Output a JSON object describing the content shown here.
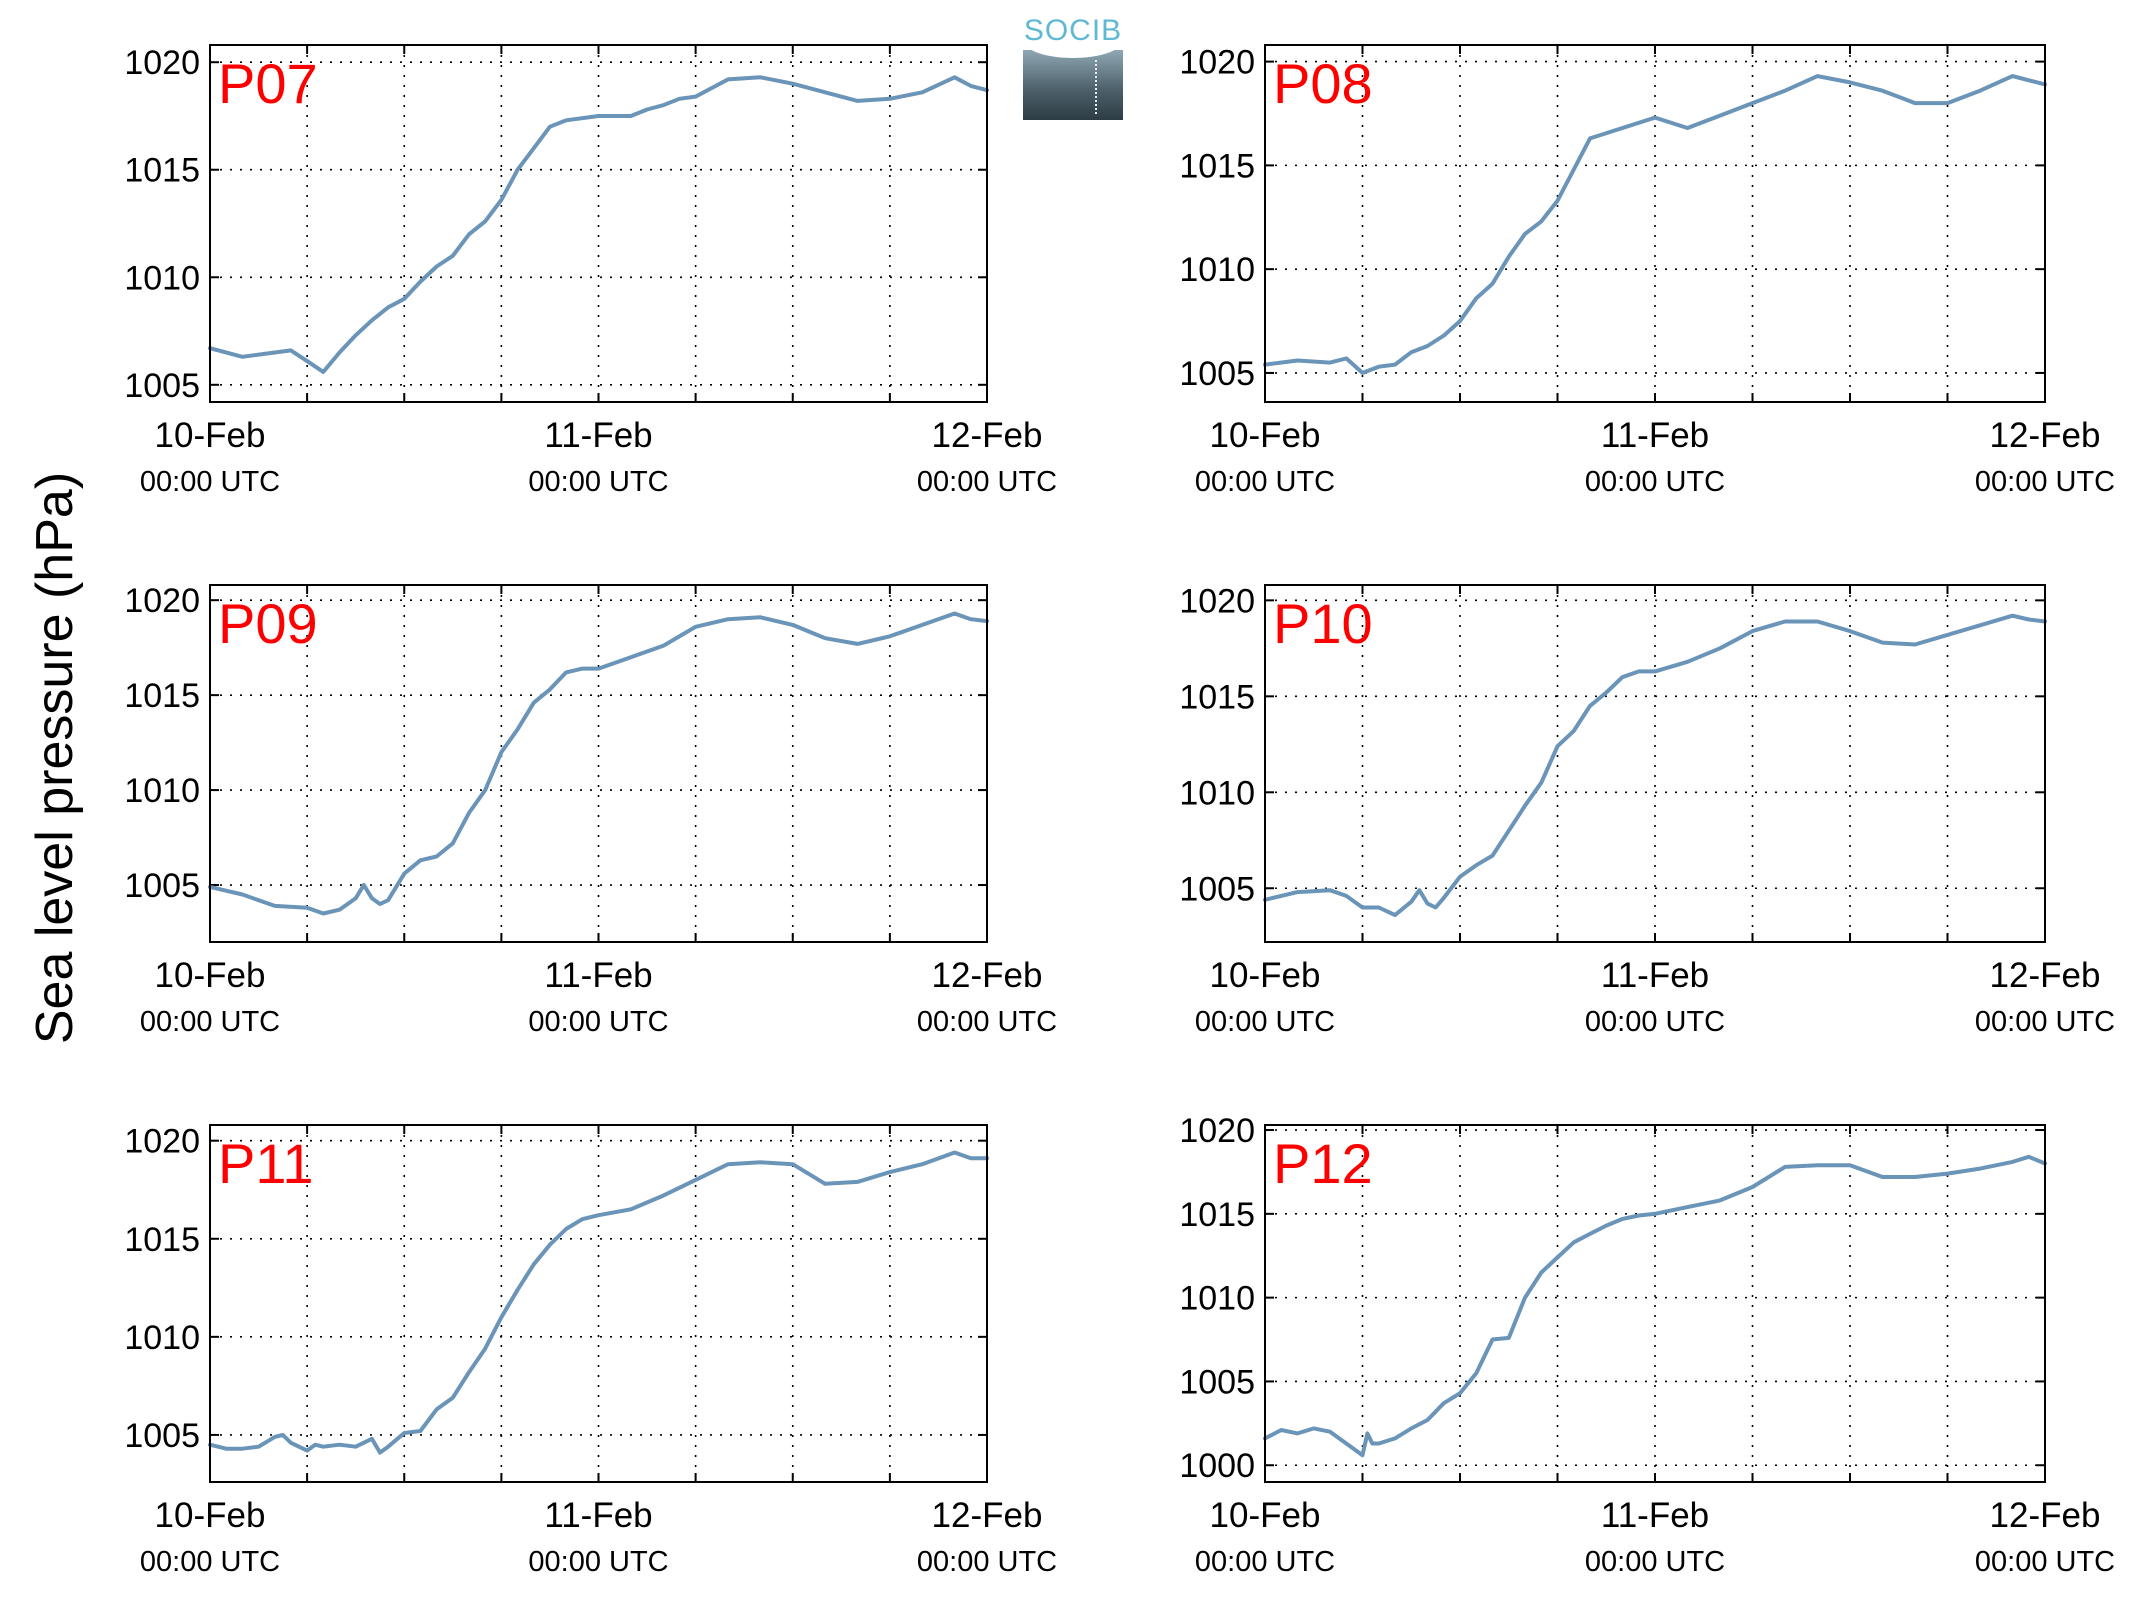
{
  "figure": {
    "ylabel": "Sea level pressure (hPa)",
    "logo_text": "SOCIB",
    "line_color": "#6a94b8",
    "label_color": "#ff0000"
  },
  "chart_data": [
    {
      "type": "line",
      "label": "P07",
      "x_ticks": [
        "10-Feb 00:00 UTC",
        "11-Feb 00:00 UTC",
        "12-Feb 00:00 UTC"
      ],
      "xlim": [
        0,
        48
      ],
      "ylim": [
        1004.2,
        1020.8
      ],
      "yticks": [
        1005,
        1010,
        1015,
        1020
      ],
      "grid": true,
      "x_hours": [
        0,
        2,
        4,
        5,
        6,
        7,
        8,
        9,
        10,
        11,
        12,
        13,
        14,
        15,
        16,
        17,
        18,
        19,
        20,
        21,
        22,
        24,
        26,
        27,
        28,
        29,
        30,
        32,
        34,
        36,
        38,
        40,
        42,
        44,
        46,
        47,
        48
      ],
      "values": [
        1006.7,
        1006.3,
        1006.5,
        1006.6,
        1006.1,
        1005.6,
        1006.5,
        1007.3,
        1008.0,
        1008.6,
        1009.0,
        1009.8,
        1010.5,
        1011.0,
        1012.0,
        1012.6,
        1013.6,
        1015.0,
        1016.0,
        1017.0,
        1017.3,
        1017.5,
        1017.5,
        1017.8,
        1018.0,
        1018.3,
        1018.4,
        1019.2,
        1019.3,
        1019.0,
        1018.6,
        1018.2,
        1018.3,
        1018.6,
        1019.3,
        1018.9,
        1018.7
      ]
    },
    {
      "type": "line",
      "label": "P08",
      "x_ticks": [
        "10-Feb 00:00 UTC",
        "11-Feb 00:00 UTC",
        "12-Feb 00:00 UTC"
      ],
      "xlim": [
        0,
        48
      ],
      "ylim": [
        1003.6,
        1020.8
      ],
      "yticks": [
        1005,
        1010,
        1015,
        1020
      ],
      "grid": true,
      "x_hours": [
        0,
        2,
        4,
        5,
        6,
        7,
        8,
        9,
        10,
        11,
        12,
        13,
        14,
        15,
        16,
        17,
        18,
        19,
        20,
        22,
        24,
        26,
        28,
        30,
        32,
        34,
        36,
        38,
        40,
        42,
        44,
        46,
        47,
        48
      ],
      "values": [
        1005.4,
        1005.6,
        1005.5,
        1005.7,
        1005.0,
        1005.3,
        1005.4,
        1006.0,
        1006.3,
        1006.8,
        1007.5,
        1008.6,
        1009.3,
        1010.6,
        1011.7,
        1012.3,
        1013.3,
        1014.8,
        1016.3,
        1016.8,
        1017.3,
        1016.8,
        1017.4,
        1018.0,
        1018.6,
        1019.3,
        1019.0,
        1018.6,
        1018.0,
        1018.0,
        1018.6,
        1019.3,
        1019.1,
        1018.9
      ]
    },
    {
      "type": "line",
      "label": "P09",
      "x_ticks": [
        "10-Feb 00:00 UTC",
        "11-Feb 00:00 UTC",
        "12-Feb 00:00 UTC"
      ],
      "xlim": [
        0,
        48
      ],
      "ylim": [
        1002.0,
        1020.8
      ],
      "yticks": [
        1005,
        1010,
        1015,
        1020
      ],
      "grid": true,
      "x_hours": [
        0,
        2,
        4,
        6,
        7,
        8,
        9,
        9.5,
        10,
        10.5,
        11,
        12,
        13,
        14,
        15,
        16,
        17,
        18,
        19,
        20,
        21,
        22,
        23,
        24,
        26,
        28,
        30,
        32,
        34,
        36,
        38,
        40,
        42,
        44,
        46,
        47,
        48
      ],
      "values": [
        1004.9,
        1004.5,
        1003.9,
        1003.8,
        1003.5,
        1003.7,
        1004.3,
        1005.0,
        1004.3,
        1004.0,
        1004.2,
        1005.6,
        1006.3,
        1006.5,
        1007.2,
        1008.8,
        1010.0,
        1012.0,
        1013.2,
        1014.6,
        1015.3,
        1016.2,
        1016.4,
        1016.4,
        1017.0,
        1017.6,
        1018.6,
        1019.0,
        1019.1,
        1018.7,
        1018.0,
        1017.7,
        1018.1,
        1018.7,
        1019.3,
        1019.0,
        1018.9
      ]
    },
    {
      "type": "line",
      "label": "P10",
      "x_ticks": [
        "10-Feb 00:00 UTC",
        "11-Feb 00:00 UTC",
        "12-Feb 00:00 UTC"
      ],
      "xlim": [
        0,
        48
      ],
      "ylim": [
        1002.2,
        1020.8
      ],
      "yticks": [
        1005,
        1010,
        1015,
        1020
      ],
      "grid": true,
      "x_hours": [
        0,
        2,
        4,
        5,
        6,
        7,
        8,
        9,
        9.5,
        10,
        10.5,
        11,
        12,
        13,
        14,
        15,
        16,
        17,
        18,
        19,
        20,
        21,
        22,
        23,
        24,
        26,
        28,
        30,
        32,
        34,
        36,
        38,
        40,
        42,
        44,
        46,
        47,
        48
      ],
      "values": [
        1004.4,
        1004.8,
        1004.9,
        1004.6,
        1004.0,
        1004.0,
        1003.6,
        1004.3,
        1004.9,
        1004.2,
        1004.0,
        1004.5,
        1005.6,
        1006.2,
        1006.7,
        1008.0,
        1009.3,
        1010.5,
        1012.4,
        1013.2,
        1014.5,
        1015.2,
        1016.0,
        1016.3,
        1016.3,
        1016.8,
        1017.5,
        1018.4,
        1018.9,
        1018.9,
        1018.4,
        1017.8,
        1017.7,
        1018.2,
        1018.7,
        1019.2,
        1019.0,
        1018.9
      ]
    },
    {
      "type": "line",
      "label": "P11",
      "x_ticks": [
        "10-Feb 00:00 UTC",
        "11-Feb 00:00 UTC",
        "12-Feb 00:00 UTC"
      ],
      "xlim": [
        0,
        48
      ],
      "ylim": [
        1002.6,
        1020.8
      ],
      "yticks": [
        1005,
        1010,
        1015,
        1020
      ],
      "grid": true,
      "x_hours": [
        0,
        1,
        2,
        3,
        4,
        4.5,
        5,
        6,
        6.5,
        7,
        8,
        9,
        10,
        10.5,
        11,
        12,
        13,
        14,
        15,
        16,
        17,
        18,
        19,
        20,
        21,
        22,
        23,
        24,
        26,
        28,
        30,
        32,
        34,
        36,
        38,
        40,
        42,
        44,
        46,
        47,
        48
      ],
      "values": [
        1004.5,
        1004.3,
        1004.3,
        1004.4,
        1004.9,
        1005.0,
        1004.6,
        1004.2,
        1004.5,
        1004.4,
        1004.5,
        1004.4,
        1004.8,
        1004.1,
        1004.4,
        1005.1,
        1005.2,
        1006.3,
        1006.9,
        1008.2,
        1009.4,
        1011.0,
        1012.4,
        1013.7,
        1014.7,
        1015.5,
        1016.0,
        1016.2,
        1016.5,
        1017.2,
        1018.0,
        1018.8,
        1018.9,
        1018.8,
        1017.8,
        1017.9,
        1018.4,
        1018.8,
        1019.4,
        1019.1,
        1019.1
      ]
    },
    {
      "type": "line",
      "label": "P12",
      "x_ticks": [
        "10-Feb 00:00 UTC",
        "11-Feb 00:00 UTC",
        "12-Feb 00:00 UTC"
      ],
      "xlim": [
        0,
        48
      ],
      "ylim": [
        999.0,
        1020.3
      ],
      "yticks": [
        1000,
        1005,
        1010,
        1015,
        1020
      ],
      "grid": true,
      "x_hours": [
        0,
        1,
        2,
        3,
        4,
        5,
        6,
        6.3,
        6.6,
        7,
        8,
        9,
        10,
        11,
        12,
        13,
        14,
        15,
        16,
        17,
        18,
        19,
        20,
        21,
        22,
        23,
        24,
        26,
        28,
        30,
        32,
        34,
        36,
        38,
        40,
        42,
        44,
        46,
        47,
        48
      ],
      "values": [
        1001.6,
        1002.1,
        1001.9,
        1002.2,
        1002.0,
        1001.3,
        1000.6,
        1001.9,
        1001.3,
        1001.3,
        1001.6,
        1002.2,
        1002.7,
        1003.7,
        1004.3,
        1005.5,
        1007.5,
        1007.6,
        1010.0,
        1011.5,
        1012.4,
        1013.3,
        1013.8,
        1014.3,
        1014.7,
        1014.9,
        1015.0,
        1015.4,
        1015.8,
        1016.6,
        1017.8,
        1017.9,
        1017.9,
        1017.2,
        1017.2,
        1017.4,
        1017.7,
        1018.1,
        1018.4,
        1018.0
      ]
    }
  ]
}
